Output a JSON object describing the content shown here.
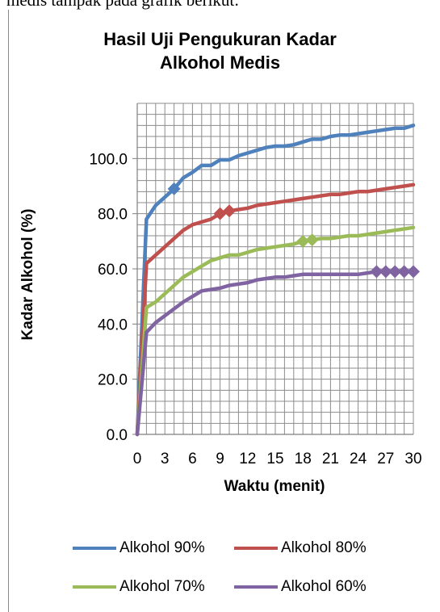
{
  "page": {
    "top_text": "medis tampak pada grafik berikut:"
  },
  "chart_data": {
    "type": "line",
    "title_lines": [
      "Hasil Uji Pengukuran Kadar",
      "Alkohol Medis"
    ],
    "xlabel": "Waktu (menit)",
    "ylabel": "Kadar Alkohol (%)",
    "xlim": [
      0,
      30
    ],
    "ylim": [
      0,
      120
    ],
    "x_ticks": [
      "0",
      "3",
      "6",
      "9",
      "12",
      "15",
      "18",
      "21",
      "24",
      "27",
      "30"
    ],
    "y_ticks": [
      "0.0",
      "20.0",
      "40.0",
      "60.0",
      "80.0",
      "100.0"
    ],
    "grid": true,
    "legend_position": "bottom",
    "x": [
      0,
      1,
      2,
      3,
      4,
      5,
      6,
      7,
      8,
      9,
      10,
      11,
      12,
      13,
      14,
      15,
      16,
      17,
      18,
      19,
      20,
      21,
      22,
      23,
      24,
      25,
      26,
      27,
      28,
      29,
      30
    ],
    "series": [
      {
        "name": "Alkohol 90%",
        "color": "#4f81bd",
        "values": [
          0,
          78,
          83,
          86,
          89,
          93,
          95,
          97.5,
          97.5,
          99.5,
          99.5,
          101,
          102,
          103,
          104,
          104.5,
          104.5,
          105,
          106,
          107,
          107,
          108,
          108.5,
          108.5,
          109,
          109.5,
          110,
          110.5,
          111,
          111,
          112
        ],
        "marker_indices": [
          4
        ]
      },
      {
        "name": "Alkohol 80%",
        "color": "#c0504d",
        "values": [
          0,
          62,
          65,
          68,
          71,
          74,
          76,
          77,
          78,
          80,
          81,
          81.5,
          82,
          83,
          83.5,
          84,
          84.5,
          85,
          85.5,
          86,
          86.5,
          87,
          87,
          87.5,
          88,
          88,
          88.5,
          89,
          89.5,
          90,
          90.5
        ],
        "marker_indices": [
          9,
          10
        ]
      },
      {
        "name": "Alkohol 70%",
        "color": "#9bbb59",
        "values": [
          0,
          46,
          48,
          51,
          54,
          57,
          59,
          61,
          63,
          64,
          65,
          65,
          66,
          67,
          67.5,
          68,
          68.5,
          69,
          70,
          70.5,
          71,
          71,
          71.5,
          72,
          72,
          72.5,
          73,
          73.5,
          74,
          74.5,
          75
        ],
        "marker_indices": [
          18,
          19
        ]
      },
      {
        "name": "Alkohol 60%",
        "color": "#8064a2",
        "values": [
          0,
          37,
          40.5,
          43,
          45.5,
          48,
          50,
          52,
          52.5,
          53,
          54,
          54.5,
          55,
          56,
          56.5,
          57,
          57,
          57.5,
          58,
          58,
          58,
          58,
          58,
          58,
          58,
          58.5,
          59,
          59,
          59,
          59,
          59
        ],
        "marker_indices": [
          26,
          27,
          28,
          29,
          30
        ]
      }
    ]
  }
}
